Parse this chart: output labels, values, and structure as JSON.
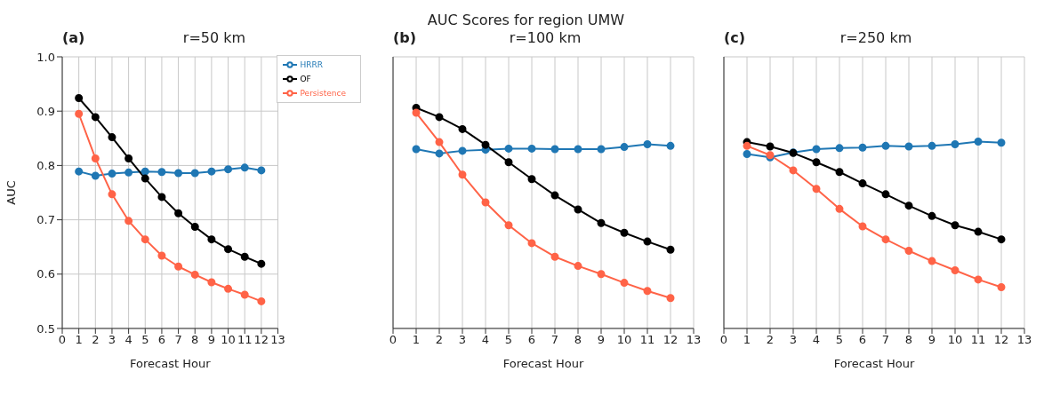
{
  "chart_data": [
    {
      "type": "line",
      "title": "r=50 km",
      "annotations": [
        "AUC Scores for region UMW",
        "(a)"
      ],
      "xlabel": "Forecast Hour",
      "ylabel": "AUC",
      "x": [
        1,
        2,
        3,
        4,
        5,
        6,
        7,
        8,
        9,
        10,
        11,
        12
      ],
      "xlim": [
        0,
        13
      ],
      "xticks": [
        0,
        1,
        2,
        3,
        4,
        5,
        6,
        7,
        8,
        9,
        10,
        11,
        12,
        13
      ],
      "ylim": [
        0.5,
        1.0
      ],
      "yticks": [
        0.5,
        0.6,
        0.7,
        0.8,
        0.9,
        {
          "value": 1.0,
          "label": "1.0"
        }
      ],
      "grid": true,
      "legend": "top right",
      "marker": "circle",
      "line_style": "solid",
      "series": [
        {
          "name": "HRRR",
          "color": "#1f77b4",
          "values": [
            0.789,
            0.781,
            0.785,
            0.787,
            0.789,
            0.788,
            0.786,
            0.786,
            0.789,
            0.793,
            0.796,
            0.791
          ]
        },
        {
          "name": "OF",
          "color": "#000000",
          "values": [
            0.924,
            0.889,
            0.852,
            0.813,
            0.776,
            0.742,
            0.712,
            0.687,
            0.664,
            0.646,
            0.632,
            0.619
          ]
        },
        {
          "name": "Persistence",
          "color": "#ff6347",
          "values": [
            0.895,
            0.813,
            0.747,
            0.698,
            0.664,
            0.634,
            0.614,
            0.599,
            0.585,
            0.573,
            0.562,
            0.55
          ]
        }
      ]
    },
    {
      "type": "line",
      "title": "r=100 km",
      "annotations": [
        "(b)"
      ],
      "xlabel": "Forecast Hour",
      "x": [
        1,
        2,
        3,
        4,
        5,
        6,
        7,
        8,
        9,
        10,
        11,
        12
      ],
      "xlim": [
        0,
        13
      ],
      "xticks": [
        0,
        1,
        2,
        3,
        4,
        5,
        6,
        7,
        8,
        9,
        10,
        11,
        12,
        13
      ],
      "ylim": [
        0.5,
        1.0
      ],
      "yticks": [
        0.5,
        0.6,
        0.7,
        0.8,
        0.9,
        1.0
      ],
      "tick_labels": "x",
      "grid": true,
      "marker": "circle",
      "line_style": "solid",
      "series": [
        {
          "color": "#1f77b4",
          "values": [
            0.83,
            0.822,
            0.827,
            0.829,
            0.831,
            0.831,
            0.83,
            0.83,
            0.83,
            0.834,
            0.839,
            0.836
          ]
        },
        {
          "color": "#000000",
          "values": [
            0.906,
            0.889,
            0.867,
            0.838,
            0.806,
            0.775,
            0.745,
            0.719,
            0.694,
            0.676,
            0.66,
            0.645
          ]
        },
        {
          "color": "#ff6347",
          "values": [
            0.897,
            0.843,
            0.783,
            0.732,
            0.69,
            0.657,
            0.632,
            0.615,
            0.6,
            0.584,
            0.569,
            0.556
          ]
        }
      ]
    },
    {
      "type": "line",
      "title": "r=250 km",
      "annotations": [
        "(c)"
      ],
      "xlabel": "Forecast Hour",
      "x": [
        1,
        2,
        3,
        4,
        5,
        6,
        7,
        8,
        9,
        10,
        11,
        12
      ],
      "xlim": [
        0,
        13
      ],
      "xticks": [
        0,
        1,
        2,
        3,
        4,
        5,
        6,
        7,
        8,
        9,
        10,
        11,
        12,
        13
      ],
      "ylim": [
        0.5,
        1.0
      ],
      "yticks": [
        0.5,
        0.6,
        0.7,
        0.8,
        0.9,
        1.0
      ],
      "tick_labels": "x",
      "grid": true,
      "marker": "circle",
      "line_style": "solid",
      "series": [
        {
          "color": "#1f77b4",
          "values": [
            0.821,
            0.815,
            0.824,
            0.83,
            0.832,
            0.833,
            0.836,
            0.835,
            0.836,
            0.839,
            0.844,
            0.842
          ]
        },
        {
          "color": "#000000",
          "values": [
            0.843,
            0.835,
            0.823,
            0.806,
            0.788,
            0.767,
            0.747,
            0.726,
            0.707,
            0.69,
            0.678,
            0.664
          ]
        },
        {
          "color": "#ff6347",
          "values": [
            0.836,
            0.819,
            0.791,
            0.757,
            0.72,
            0.688,
            0.664,
            0.643,
            0.624,
            0.607,
            0.59,
            0.576
          ]
        }
      ]
    }
  ]
}
